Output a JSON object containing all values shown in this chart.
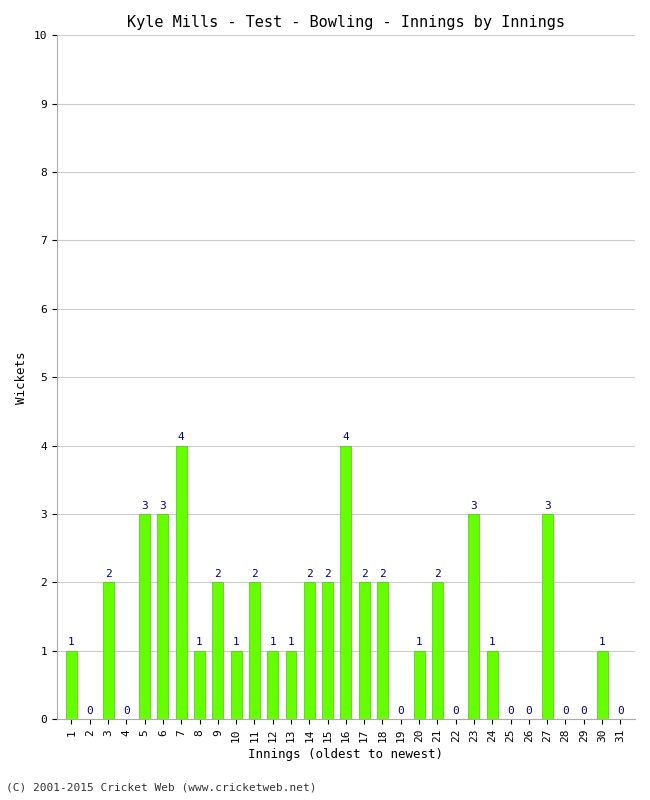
{
  "title": "Kyle Mills - Test - Bowling - Innings by Innings",
  "xlabel": "Innings (oldest to newest)",
  "ylabel": "Wickets",
  "bar_color": "#66ff00",
  "bar_edge_color": "#44cc00",
  "label_color": "#000080",
  "background_color": "#ffffff",
  "grid_color": "#cccccc",
  "ylim": [
    0,
    10
  ],
  "yticks": [
    0,
    1,
    2,
    3,
    4,
    5,
    6,
    7,
    8,
    9,
    10
  ],
  "innings": [
    1,
    2,
    3,
    4,
    5,
    6,
    7,
    8,
    9,
    10,
    11,
    12,
    13,
    14,
    15,
    16,
    17,
    18,
    19,
    20,
    21,
    22,
    23,
    24,
    25,
    26,
    27,
    28,
    29,
    30,
    31
  ],
  "wickets": [
    1,
    0,
    2,
    0,
    3,
    3,
    4,
    1,
    2,
    1,
    2,
    1,
    1,
    2,
    2,
    4,
    2,
    2,
    0,
    1,
    2,
    0,
    3,
    1,
    0,
    0,
    3,
    0,
    0,
    1,
    0
  ],
  "footer": "(C) 2001-2015 Cricket Web (www.cricketweb.net)",
  "title_fontsize": 11,
  "label_fontsize": 9,
  "tick_fontsize": 8,
  "footer_fontsize": 8,
  "bar_label_fontsize": 8
}
